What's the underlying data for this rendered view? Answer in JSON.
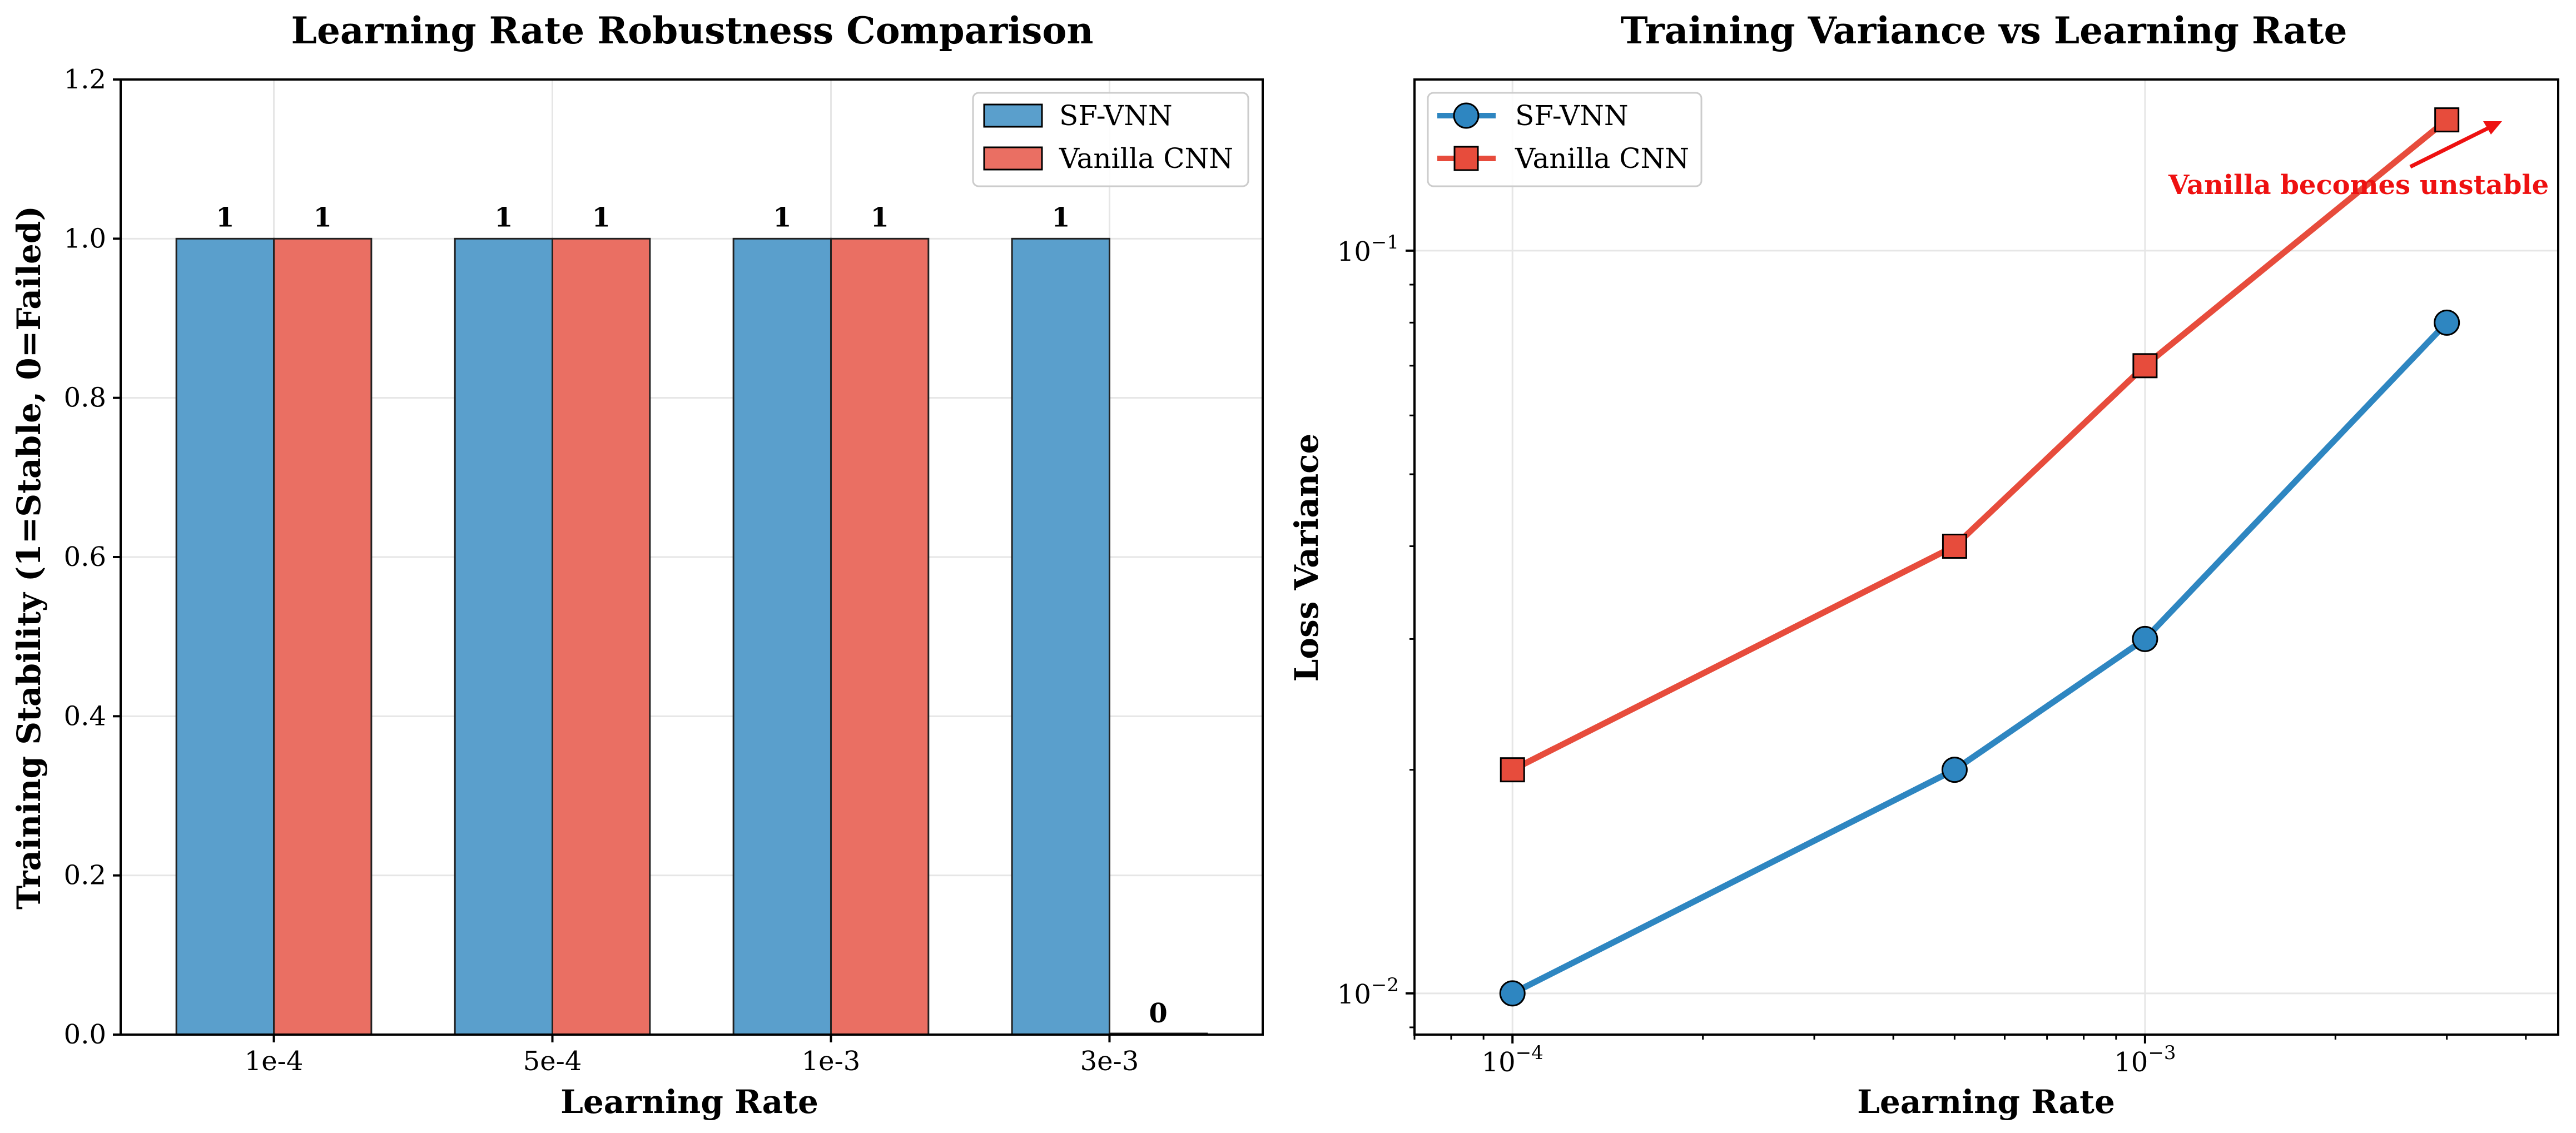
{
  "chart_data": [
    {
      "type": "bar",
      "title": "Learning Rate Robustness Comparison",
      "xlabel": "Learning Rate",
      "ylabel": "Training Stability (1=Stable, 0=Failed)",
      "categories": [
        "1e-4",
        "5e-4",
        "1e-3",
        "3e-3"
      ],
      "ylim": [
        0,
        1.2
      ],
      "yticks": [
        "0.0",
        "0.2",
        "0.4",
        "0.6",
        "0.8",
        "1.0",
        "1.2"
      ],
      "grid": true,
      "legend_position": "top-right",
      "series": [
        {
          "name": "SF-VNN",
          "values": [
            1,
            1,
            1,
            1
          ],
          "labels": [
            "1",
            "1",
            "1",
            "1"
          ],
          "color": "#5a9fcc"
        },
        {
          "name": "Vanilla CNN",
          "values": [
            1,
            1,
            1,
            0
          ],
          "labels": [
            "1",
            "1",
            "1",
            "0"
          ],
          "color": "#ea6f63"
        }
      ]
    },
    {
      "type": "line",
      "title": "Training Variance vs Learning Rate",
      "xlabel": "Learning Rate",
      "ylabel": "Loss Variance",
      "xscale": "log",
      "yscale": "log",
      "x": [
        0.0001,
        0.0005,
        0.001,
        0.003
      ],
      "xlim": [
        7e-05,
        0.0045
      ],
      "ylim": [
        0.0088,
        0.17
      ],
      "xticks": [
        "10^-4",
        "10^-3"
      ],
      "yticks": [
        "10^-2",
        "10^-1"
      ],
      "grid": true,
      "legend_position": "top-left",
      "series": [
        {
          "name": "SF-VNN",
          "values": [
            0.01,
            0.02,
            0.03,
            0.08
          ],
          "marker": "circle",
          "color": "#2e86c1"
        },
        {
          "name": "Vanilla CNN",
          "values": [
            0.02,
            0.04,
            0.07,
            0.15
          ],
          "marker": "square",
          "color": "#e74c3c"
        }
      ],
      "annotation": {
        "text": "Vanilla becomes unstable",
        "x": 0.003,
        "y": 0.15,
        "color": "#ff0000"
      }
    }
  ]
}
